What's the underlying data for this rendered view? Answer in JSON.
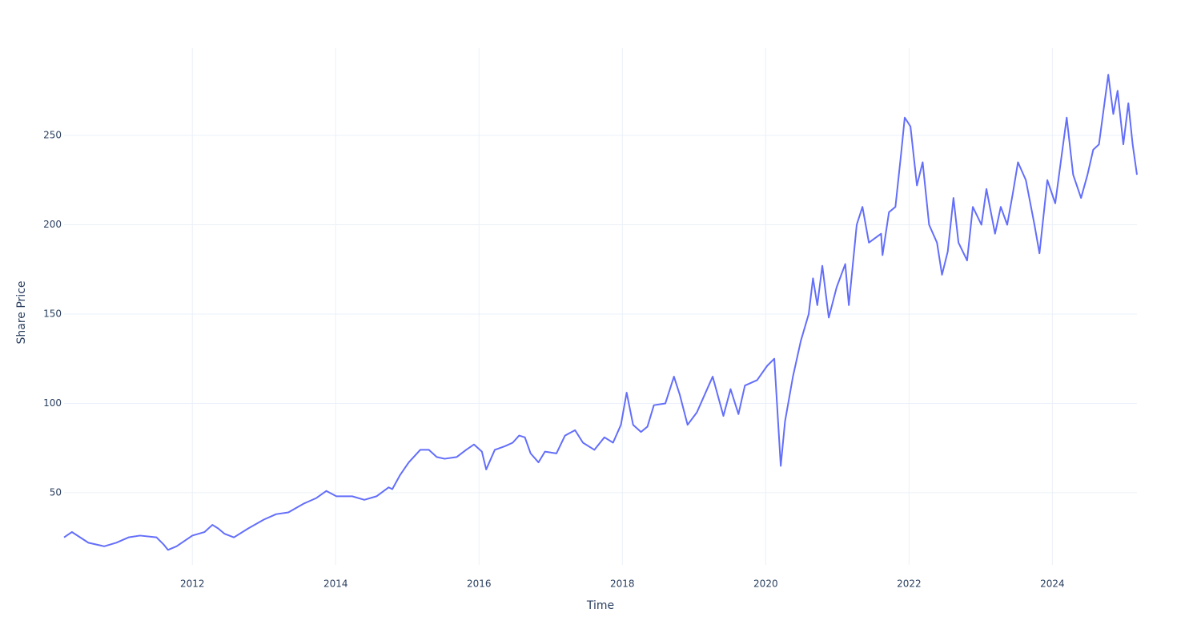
{
  "chart_data": {
    "type": "line",
    "x_label": "Time",
    "y_label": "Share Price",
    "color": "#636efa",
    "grid": true,
    "xlim": [
      2010.21,
      2025.18
    ],
    "xticks": [
      2012,
      2014,
      2016,
      2018,
      2020,
      2022,
      2024
    ],
    "ylim": [
      9.6,
      298.9
    ],
    "yticks": [
      50,
      100,
      150,
      200,
      250
    ],
    "x": [
      2010.21,
      2010.32,
      2010.55,
      2010.77,
      2010.94,
      2011.11,
      2011.27,
      2011.5,
      2011.6,
      2011.66,
      2011.78,
      2012,
      2012.17,
      2012.28,
      2012.36,
      2012.45,
      2012.58,
      2012.78,
      2013,
      2013.17,
      2013.34,
      2013.56,
      2013.73,
      2013.87,
      2014.01,
      2014.23,
      2014.4,
      2014.57,
      2014.74,
      2014.79,
      2014.9,
      2015.02,
      2015.18,
      2015.3,
      2015.41,
      2015.52,
      2015.69,
      2015.82,
      2015.93,
      2016.04,
      2016.1,
      2016.22,
      2016.36,
      2016.47,
      2016.56,
      2016.64,
      2016.72,
      2016.83,
      2016.92,
      2017.08,
      2017.2,
      2017.34,
      2017.45,
      2017.61,
      2017.75,
      2017.87,
      2017.98,
      2018.06,
      2018.15,
      2018.26,
      2018.35,
      2018.44,
      2018.6,
      2018.72,
      2018.8,
      2018.91,
      2019.04,
      2019.15,
      2019.26,
      2019.41,
      2019.51,
      2019.62,
      2019.71,
      2019.88,
      2020.02,
      2020.12,
      2020.21,
      2020.27,
      2020.38,
      2020.49,
      2020.6,
      2020.66,
      2020.72,
      2020.79,
      2020.88,
      2020.99,
      2021.11,
      2021.16,
      2021.27,
      2021.35,
      2021.44,
      2021.61,
      2021.63,
      2021.72,
      2021.81,
      2021.89,
      2021.94,
      2022.02,
      2022.11,
      2022.19,
      2022.28,
      2022.39,
      2022.46,
      2022.54,
      2022.62,
      2022.69,
      2022.81,
      2022.89,
      2023.01,
      2023.08,
      2023.2,
      2023.28,
      2023.37,
      2023.45,
      2023.52,
      2023.63,
      2023.75,
      2023.82,
      2023.93,
      2024.04,
      2024.2,
      2024.29,
      2024.4,
      2024.49,
      2024.57,
      2024.65,
      2024.78,
      2024.85,
      2024.91,
      2024.99,
      2025.06,
      2025.12,
      2025.18
    ],
    "values": [
      25,
      28,
      22,
      20,
      22,
      25,
      26,
      25,
      21,
      18,
      20,
      26,
      28,
      32,
      30,
      27,
      25,
      30,
      35,
      38,
      39,
      44,
      47,
      51,
      48,
      48,
      46,
      48,
      53,
      52,
      60,
      67,
      74,
      74,
      70,
      69,
      70,
      74,
      77,
      73,
      63,
      74,
      76,
      78,
      82,
      81,
      72,
      67,
      73,
      72,
      82,
      85,
      78,
      74,
      81,
      78,
      88,
      106,
      88,
      84,
      87,
      99,
      100,
      115,
      105,
      88,
      95,
      105,
      115,
      93,
      108,
      94,
      110,
      113,
      121,
      125,
      65,
      90,
      115,
      135,
      150,
      170,
      155,
      177,
      148,
      165,
      178,
      155,
      200,
      210,
      190,
      195,
      183,
      207,
      210,
      240,
      260,
      255,
      222,
      235,
      200,
      190,
      172,
      185,
      215,
      190,
      180,
      210,
      200,
      220,
      195,
      210,
      200,
      218,
      235,
      225,
      200,
      184,
      225,
      212,
      260,
      228,
      215,
      228,
      242,
      245,
      284,
      262,
      275,
      245,
      268,
      245,
      228
    ]
  }
}
